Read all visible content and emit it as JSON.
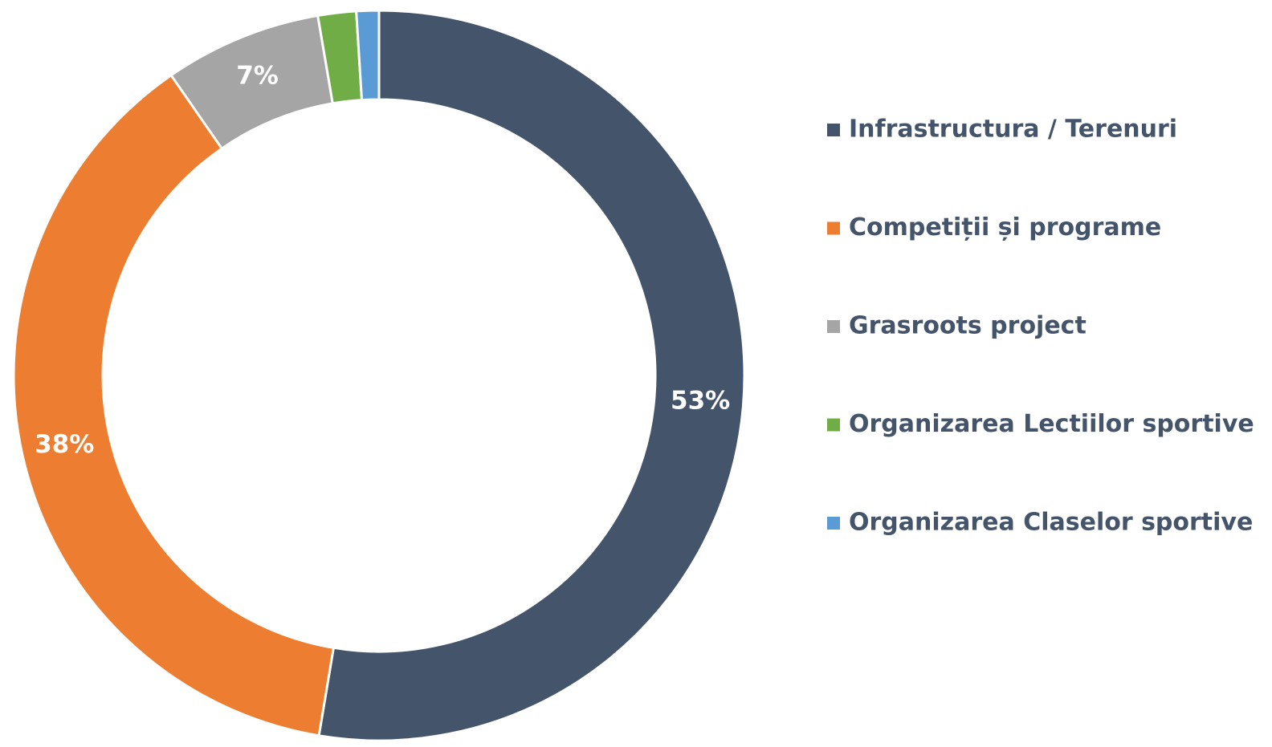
{
  "chart_data": {
    "type": "donut",
    "categories": [
      "Infrastructura / Terenuri",
      "Competiții și programe",
      "Grasroots project",
      "Organizarea Lectiilor sportive",
      "Organizarea Claselor sportive"
    ],
    "values": [
      53,
      38,
      7,
      1.7,
      1
    ],
    "value_labels": [
      "53%",
      "38%",
      "7%",
      null,
      null
    ],
    "colors": [
      "#44546a",
      "#ed7d31",
      "#a5a5a5",
      "#70ad47",
      "#5b9bd5"
    ],
    "legend": "right"
  }
}
